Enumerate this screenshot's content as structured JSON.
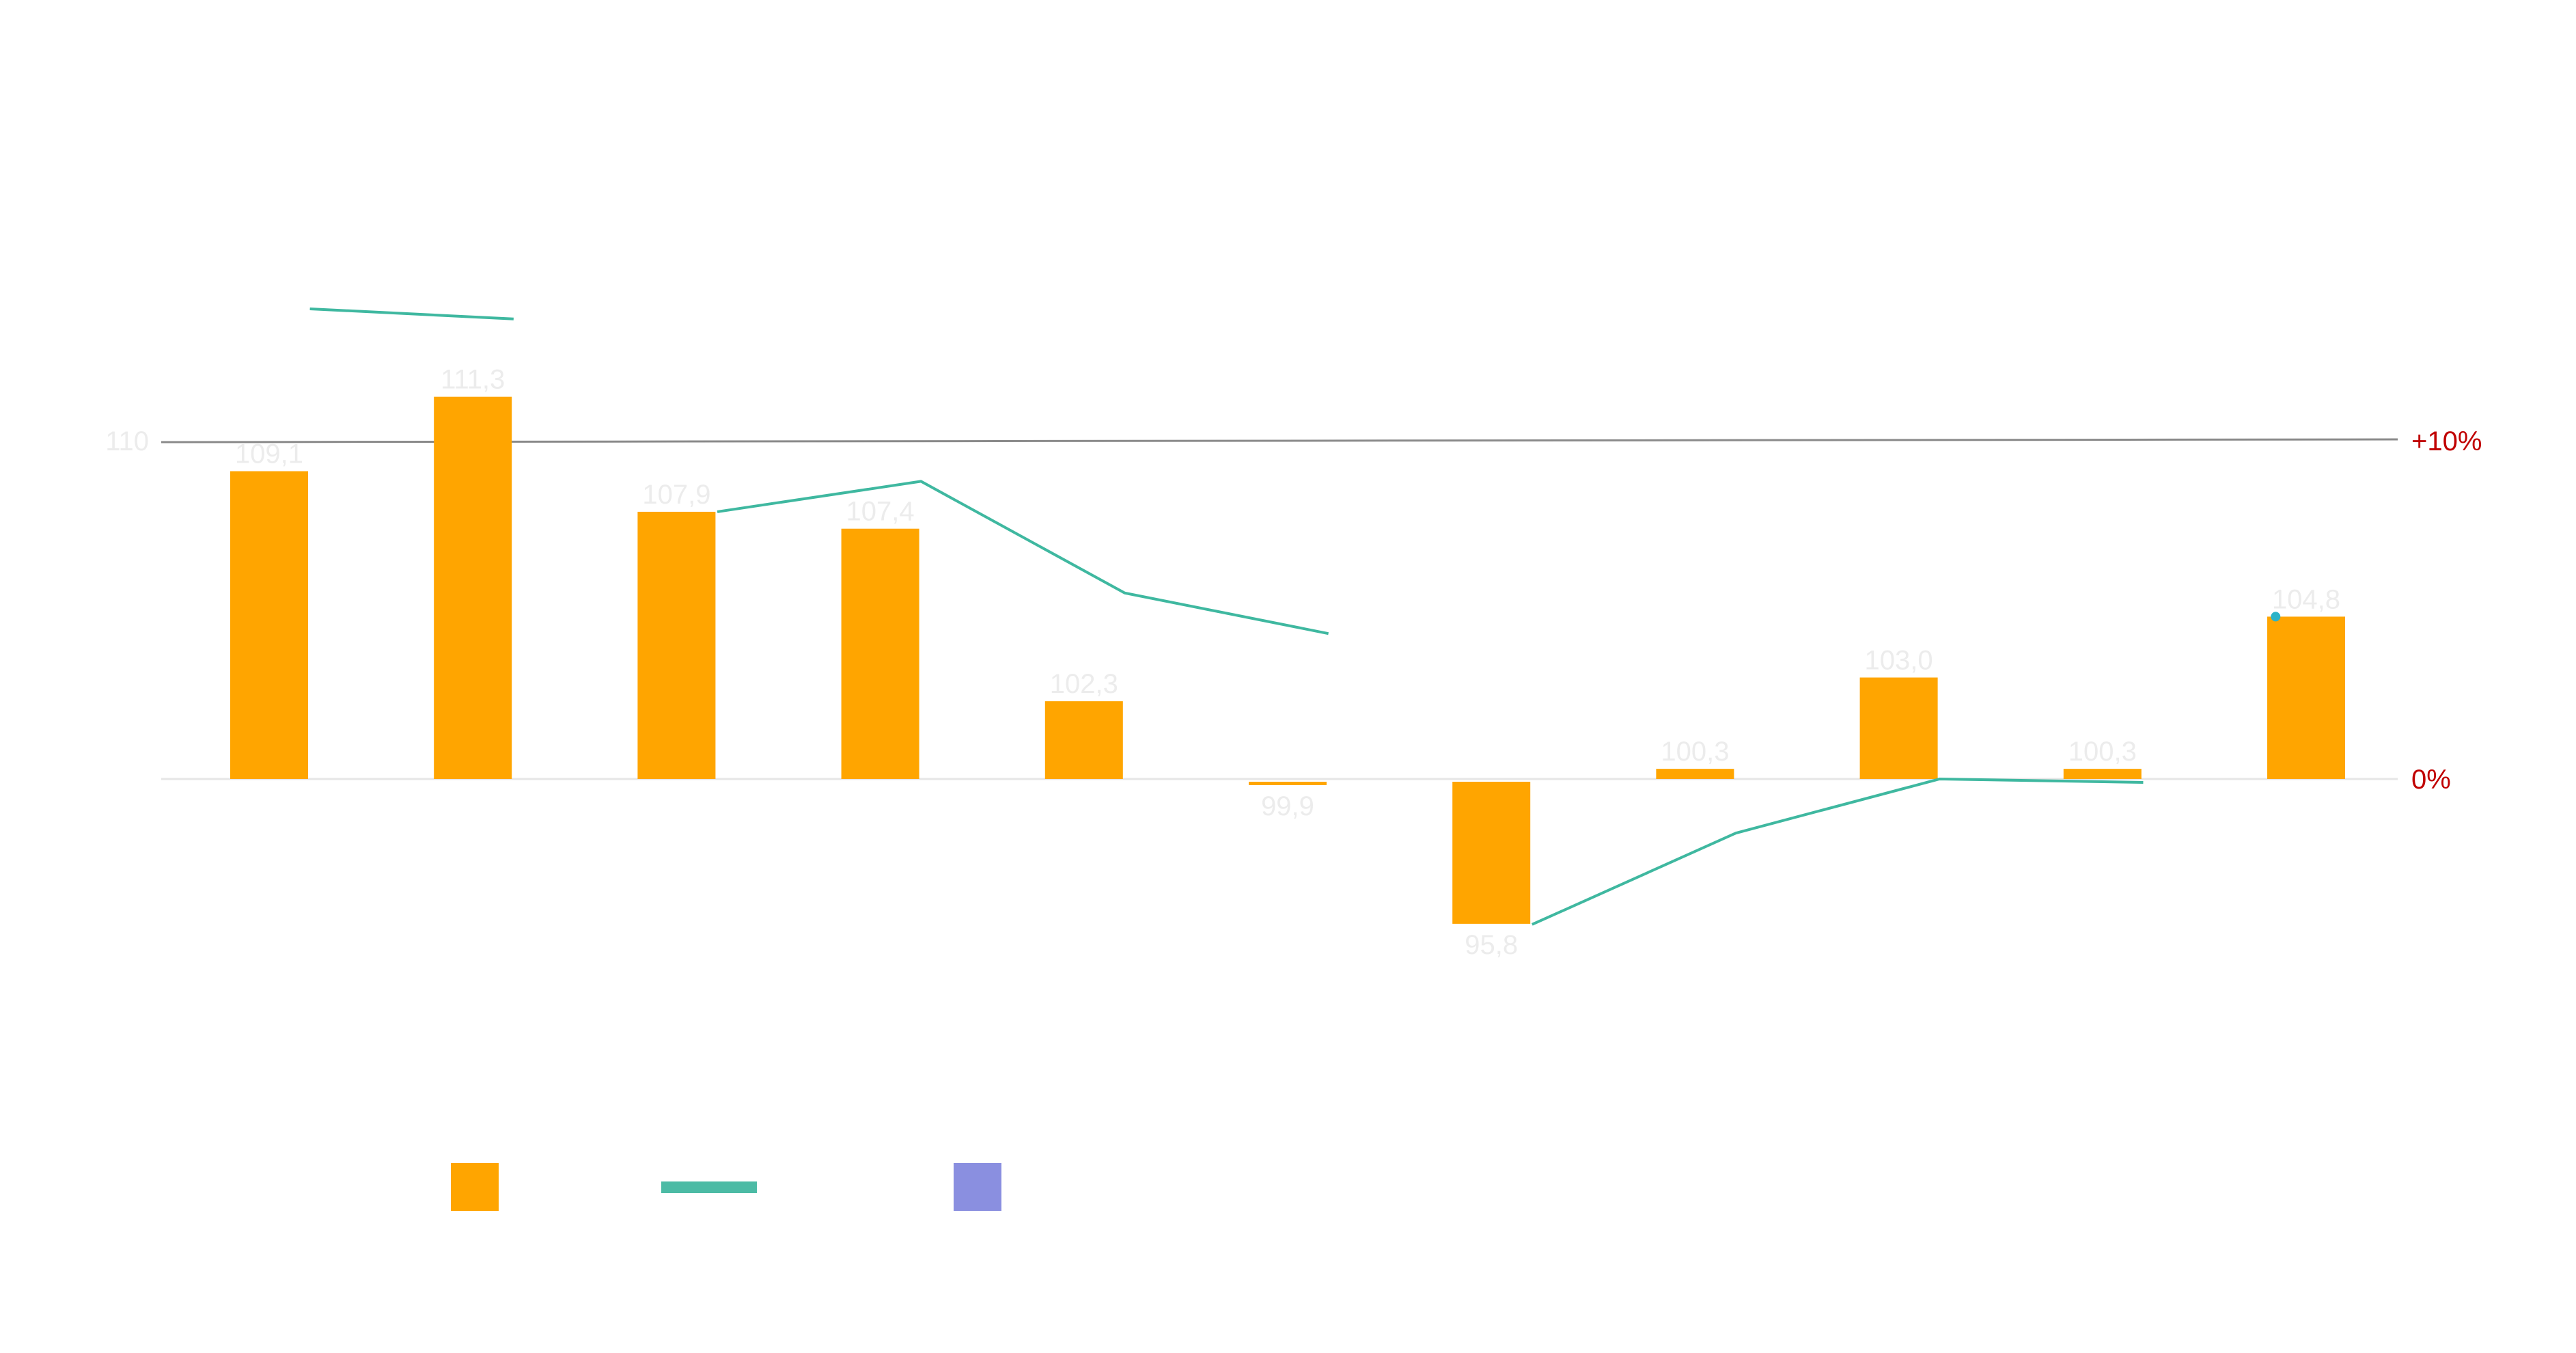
{
  "chart_data": {
    "type": "bar",
    "title": "",
    "xlabel": "",
    "ylabel": "",
    "grid": false,
    "legend_position": "bottom-left",
    "left_axis": {
      "baseline": 100,
      "ticks": [
        {
          "value": 110,
          "label": "110"
        }
      ]
    },
    "right_axis": {
      "ticks": [
        {
          "value": 10,
          "label": "+10%"
        },
        {
          "value": 0,
          "label": "0%"
        }
      ],
      "color": "#c00000"
    },
    "series": [
      {
        "type": "bar",
        "color": "#ffa500",
        "values": [
          109.1,
          111.3,
          107.9,
          107.4,
          102.3,
          99.9,
          95.8,
          100.3,
          103.0,
          100.3,
          104.8
        ],
        "labels": [
          "109,1",
          "111,3",
          "107,9",
          "107,4",
          "102,3",
          "99,9",
          "95,8",
          "100,3",
          "103,0",
          "100,3",
          "104,8"
        ]
      },
      {
        "type": "line",
        "color": "#3fb8a0",
        "values": [
          13.9,
          13.6,
          null,
          7.9,
          8.8,
          5.5,
          4.3,
          null,
          -4.3,
          -1.6,
          0.0,
          -0.1,
          null,
          4.8
        ]
      }
    ],
    "line_segments": [
      {
        "x": [
          0.2,
          1.2
        ],
        "y": [
          13.9,
          13.6
        ]
      },
      {
        "x": [
          2.2,
          3.2,
          4.2,
          5.2
        ],
        "y": [
          7.9,
          8.8,
          5.5,
          4.3
        ]
      },
      {
        "x": [
          6.2,
          7.2,
          8.2,
          9.2
        ],
        "y": [
          -4.3,
          -1.6,
          0.0,
          -0.1
        ]
      }
    ],
    "line_point": {
      "x": 9.85,
      "y": 4.8
    },
    "legend": {
      "entries": [
        {
          "swatch": "square",
          "color": "#ffa500"
        },
        {
          "swatch": "line",
          "color": "#4cbba5"
        },
        {
          "swatch": "square",
          "color": "#8a8fe0"
        }
      ]
    }
  }
}
